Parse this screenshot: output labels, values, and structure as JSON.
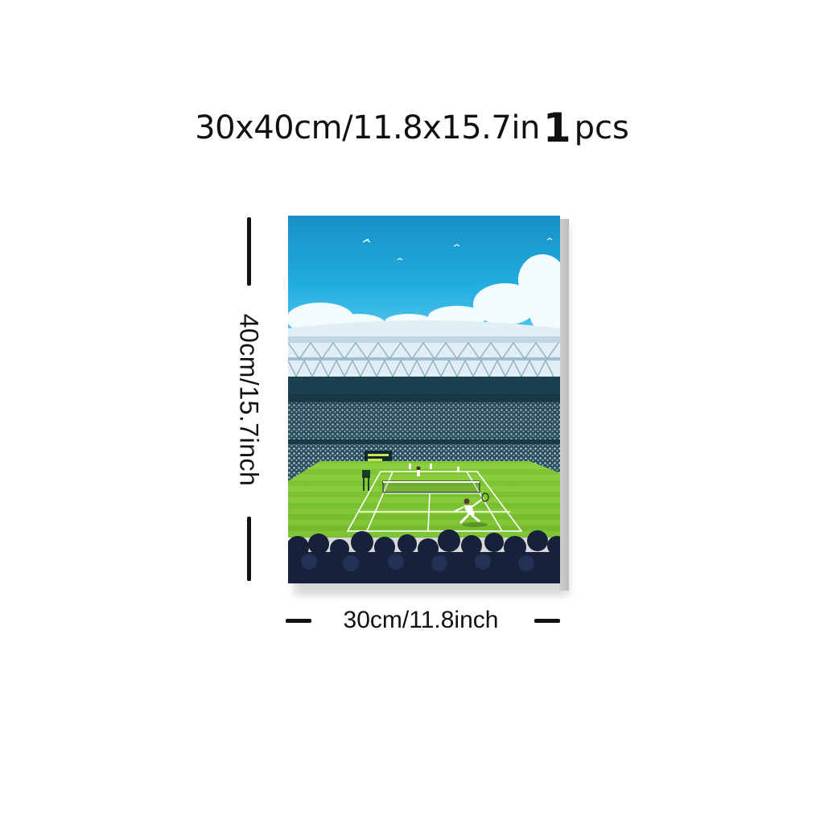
{
  "title": {
    "size_text": "30x40cm/11.8x15.7in",
    "quantity": "1",
    "unit": "pcs"
  },
  "dimensions": {
    "height_label": "40cm/15.7inch",
    "width_label": "30cm/11.8inch"
  },
  "artwork": {
    "subject": "tennis-stadium-illustration",
    "colors": {
      "sky_top": "#1aa6d8",
      "sky_bottom": "#4fc6ea",
      "cloud": "#f4fbff",
      "roof": "#d9e9f2",
      "stands": "#1d3c4a",
      "crowd_light": "#cfe6ef",
      "grass_light": "#9fd94a",
      "grass_dark": "#6cb52a",
      "foreground_crowd": "#1a2440"
    }
  }
}
